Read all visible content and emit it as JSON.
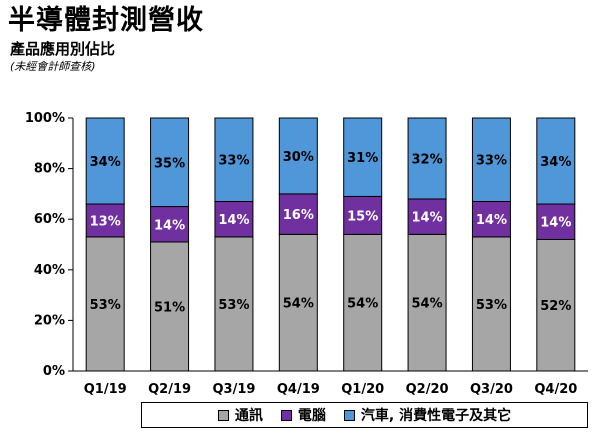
{
  "title": "半導體封測營收",
  "subtitle": "產品應用別佔比",
  "note": "(未經會計師查核)",
  "colors": {
    "comm": "#A6A6A6",
    "computer": "#7030A0",
    "other": "#4F97D9"
  },
  "chart_data": {
    "type": "bar",
    "stacked": true,
    "categories": [
      "Q1/19",
      "Q2/19",
      "Q3/19",
      "Q4/19",
      "Q1/20",
      "Q2/20",
      "Q3/20",
      "Q4/20"
    ],
    "series": [
      {
        "name": "通訊",
        "values": [
          53,
          51,
          53,
          54,
          54,
          54,
          53,
          52
        ],
        "labels": [
          "53%",
          "51%",
          "53%",
          "54%",
          "54%",
          "54%",
          "53%",
          "52%"
        ]
      },
      {
        "name": "電腦",
        "values": [
          13,
          14,
          14,
          16,
          15,
          14,
          14,
          14
        ],
        "labels": [
          "13%",
          "14%",
          "14%",
          "16%",
          "15%",
          "14%",
          "14%",
          "14%"
        ]
      },
      {
        "name": "汽車, 消費性電子及其它",
        "values": [
          34,
          35,
          33,
          30,
          31,
          32,
          33,
          34
        ],
        "labels": [
          "34%",
          "35%",
          "33%",
          "30%",
          "31%",
          "32%",
          "33%",
          "34%"
        ]
      }
    ],
    "ylim": [
      0,
      100
    ],
    "yticks": [
      "0%",
      "20%",
      "40%",
      "60%",
      "80%",
      "100%"
    ],
    "legend_position": "bottom"
  }
}
